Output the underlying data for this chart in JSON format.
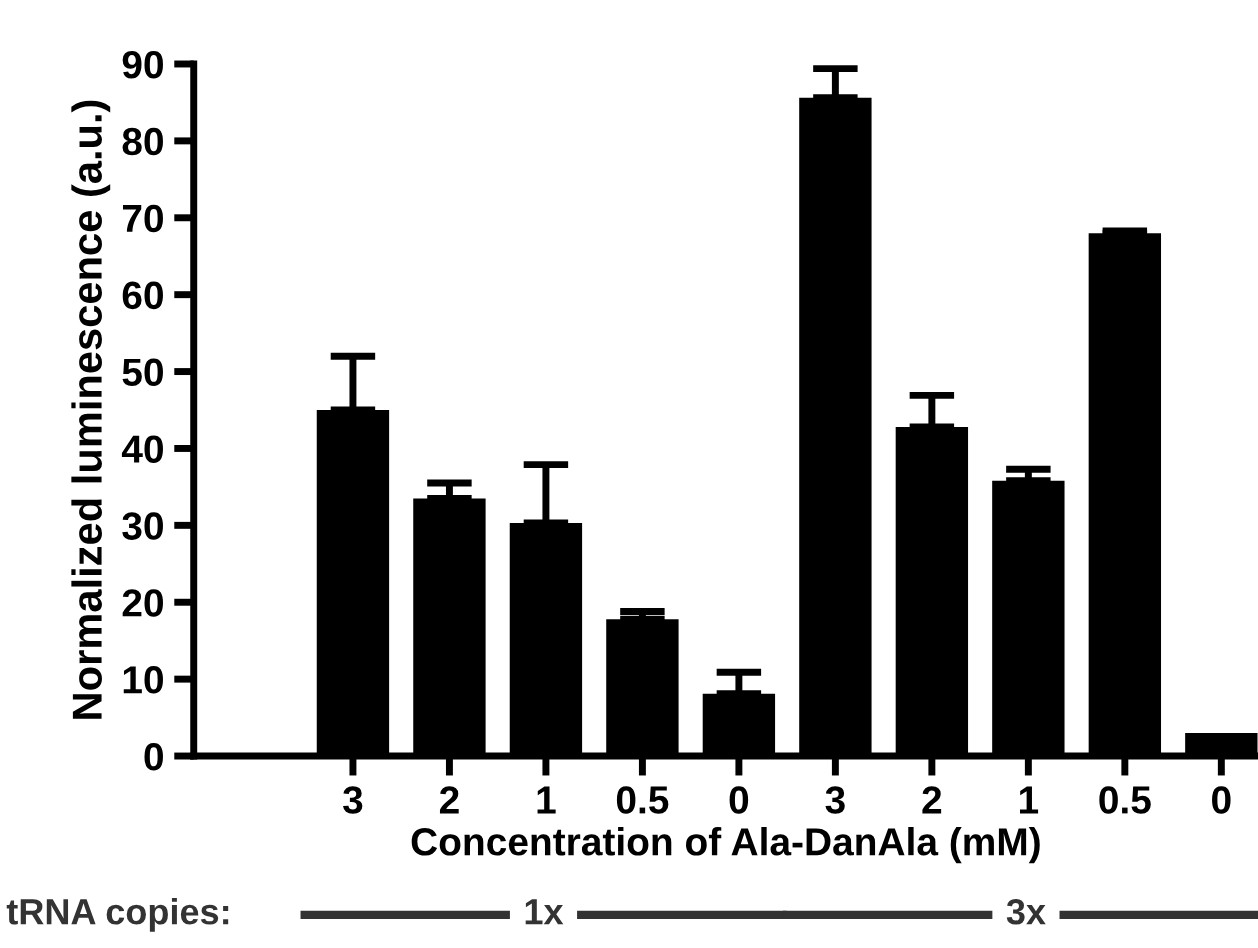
{
  "chart_data": {
    "type": "bar",
    "xlabel": "Concentration of Ala-DanAla (mM)",
    "ylabel": "Normalized luminescence (a.u.)",
    "categories": [
      "3",
      "2",
      "1",
      "0.5",
      "0",
      "3",
      "2",
      "1",
      "0.5",
      "0"
    ],
    "values": [
      45.0,
      33.5,
      30.3,
      17.8,
      8.1,
      85.6,
      42.8,
      35.8,
      68.0,
      3.0
    ],
    "errors": [
      [
        45.0,
        52.0
      ],
      [
        33.5,
        35.5
      ],
      [
        30.3,
        37.9
      ],
      [
        17.8,
        18.8
      ],
      [
        8.1,
        10.9
      ],
      [
        85.6,
        89.4
      ],
      [
        42.8,
        46.9
      ],
      [
        35.8,
        37.3
      ],
      [
        68.0,
        68.3
      ],
      null
    ],
    "color": "#000000",
    "ylim": [
      0,
      90
    ],
    "yticks": [
      0,
      10,
      20,
      30,
      40,
      50,
      60,
      70,
      80,
      90
    ],
    "grid": false,
    "annotations": [
      "tRNA copies:",
      "1x",
      "3x"
    ]
  }
}
